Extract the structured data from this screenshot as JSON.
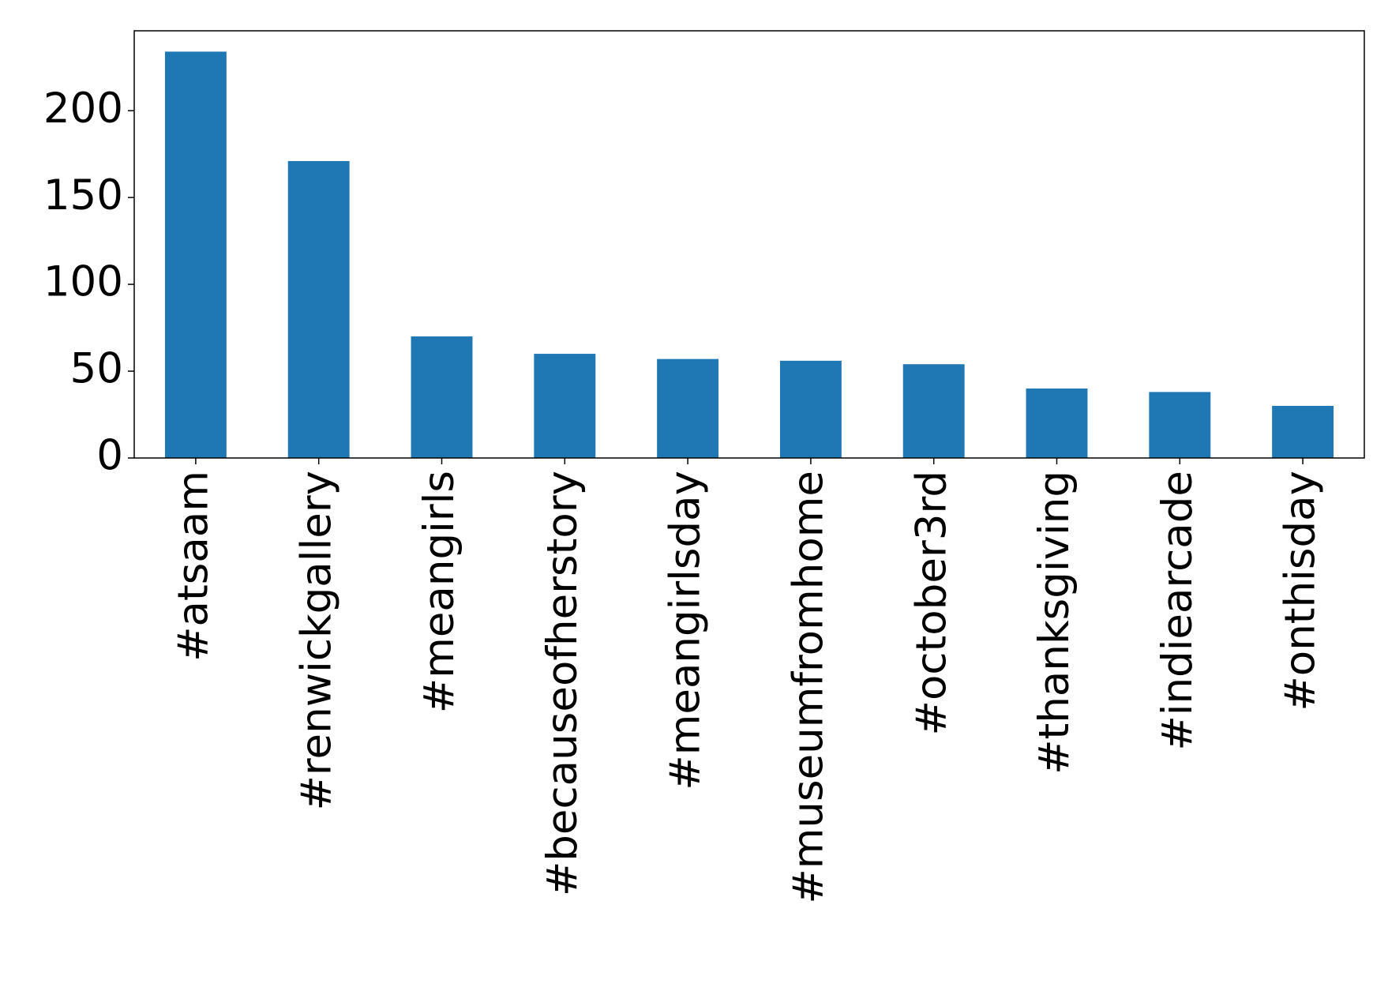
{
  "chart_data": {
    "type": "bar",
    "categories": [
      "#atsaam",
      "#renwickgallery",
      "#meangirls",
      "#becauseofherstory",
      "#meangirlsday",
      "#museumfromhome",
      "#october3rd",
      "#thanksgiving",
      "#indiearcade",
      "#onthisday"
    ],
    "values": [
      234,
      171,
      70,
      60,
      57,
      56,
      54,
      40,
      38,
      30
    ],
    "color": "#1f77b4",
    "ylim": [
      0,
      246
    ],
    "yticks": [
      0,
      50,
      100,
      150,
      200
    ],
    "grid": false
  }
}
